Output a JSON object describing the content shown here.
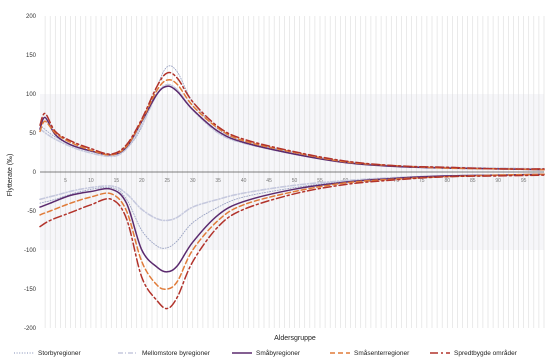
{
  "chart_data": {
    "type": "line",
    "xlabel": "Aldersgruppe",
    "ylabel": "Flytterate (‰)",
    "ylim": [
      -200,
      200
    ],
    "yticks": [
      -200,
      -150,
      -100,
      -50,
      0,
      50,
      100,
      150,
      200
    ],
    "xlim": [
      0,
      99
    ],
    "xticks": [
      5,
      10,
      15,
      20,
      25,
      30,
      35,
      40,
      45,
      50,
      55,
      60,
      65,
      70,
      75,
      80,
      85,
      90,
      95
    ],
    "grid": "vertical",
    "legend": "bottom",
    "colors": {
      "storby": "#9aa3c4",
      "mellomstore": "#c6c9de",
      "smaby": "#5b2a6e",
      "smasenter": "#e07b39",
      "spredtbygde": "#b2332b"
    },
    "series": [
      {
        "name": "Storbyregioner",
        "key": "storby",
        "style": "dotted",
        "inflow": [
          [
            0,
            60
          ],
          [
            3,
            45
          ],
          [
            8,
            30
          ],
          [
            14,
            22
          ],
          [
            17,
            30
          ],
          [
            20,
            58
          ],
          [
            23,
            110
          ],
          [
            25,
            135
          ],
          [
            27,
            128
          ],
          [
            30,
            90
          ],
          [
            35,
            55
          ],
          [
            40,
            40
          ],
          [
            50,
            25
          ],
          [
            60,
            14
          ],
          [
            70,
            8
          ],
          [
            80,
            6
          ],
          [
            90,
            5
          ],
          [
            99,
            4
          ]
        ],
        "outflow": [
          [
            0,
            -40
          ],
          [
            3,
            -35
          ],
          [
            8,
            -25
          ],
          [
            14,
            -20
          ],
          [
            17,
            -35
          ],
          [
            20,
            -75
          ],
          [
            23,
            -95
          ],
          [
            25,
            -97
          ],
          [
            27,
            -88
          ],
          [
            30,
            -65
          ],
          [
            35,
            -45
          ],
          [
            40,
            -32
          ],
          [
            50,
            -20
          ],
          [
            60,
            -12
          ],
          [
            70,
            -8
          ],
          [
            80,
            -5
          ],
          [
            90,
            -4
          ],
          [
            99,
            -3
          ]
        ]
      },
      {
        "name": "Mellomstore byregioner",
        "key": "mellomstore",
        "style": "dashdot",
        "inflow": [
          [
            0,
            55
          ],
          [
            3,
            42
          ],
          [
            8,
            28
          ],
          [
            14,
            20
          ],
          [
            17,
            30
          ],
          [
            20,
            60
          ],
          [
            23,
            100
          ],
          [
            25,
            112
          ],
          [
            27,
            105
          ],
          [
            30,
            80
          ],
          [
            35,
            50
          ],
          [
            40,
            37
          ],
          [
            50,
            23
          ],
          [
            60,
            13
          ],
          [
            70,
            8
          ],
          [
            80,
            6
          ],
          [
            90,
            5
          ],
          [
            99,
            4
          ]
        ],
        "outflow": [
          [
            0,
            -35
          ],
          [
            3,
            -30
          ],
          [
            8,
            -22
          ],
          [
            14,
            -18
          ],
          [
            17,
            -28
          ],
          [
            20,
            -48
          ],
          [
            23,
            -60
          ],
          [
            25,
            -62
          ],
          [
            27,
            -58
          ],
          [
            30,
            -45
          ],
          [
            35,
            -35
          ],
          [
            40,
            -27
          ],
          [
            50,
            -17
          ],
          [
            60,
            -11
          ],
          [
            70,
            -7
          ],
          [
            80,
            -5
          ],
          [
            90,
            -4
          ],
          [
            99,
            -3
          ]
        ]
      },
      {
        "name": "Småbyregioner",
        "key": "smaby",
        "style": "solid",
        "inflow": [
          [
            0,
            55
          ],
          [
            1,
            70
          ],
          [
            3,
            48
          ],
          [
            6,
            35
          ],
          [
            10,
            27
          ],
          [
            14,
            22
          ],
          [
            17,
            32
          ],
          [
            20,
            65
          ],
          [
            23,
            100
          ],
          [
            25,
            110
          ],
          [
            27,
            103
          ],
          [
            30,
            80
          ],
          [
            35,
            52
          ],
          [
            40,
            38
          ],
          [
            50,
            23
          ],
          [
            60,
            12
          ],
          [
            70,
            7
          ],
          [
            80,
            5
          ],
          [
            90,
            4
          ],
          [
            99,
            3
          ]
        ],
        "outflow": [
          [
            0,
            -45
          ],
          [
            2,
            -40
          ],
          [
            6,
            -30
          ],
          [
            10,
            -25
          ],
          [
            14,
            -22
          ],
          [
            17,
            -40
          ],
          [
            20,
            -100
          ],
          [
            23,
            -122
          ],
          [
            25,
            -128
          ],
          [
            27,
            -120
          ],
          [
            30,
            -90
          ],
          [
            35,
            -55
          ],
          [
            40,
            -38
          ],
          [
            50,
            -22
          ],
          [
            60,
            -13
          ],
          [
            70,
            -8
          ],
          [
            80,
            -5
          ],
          [
            90,
            -4
          ],
          [
            99,
            -3
          ]
        ]
      },
      {
        "name": "Småsenterregioner",
        "key": "smasenter",
        "style": "dashed",
        "inflow": [
          [
            0,
            52
          ],
          [
            1,
            65
          ],
          [
            3,
            50
          ],
          [
            6,
            38
          ],
          [
            10,
            28
          ],
          [
            14,
            22
          ],
          [
            17,
            33
          ],
          [
            20,
            66
          ],
          [
            23,
            105
          ],
          [
            25,
            118
          ],
          [
            27,
            112
          ],
          [
            30,
            85
          ],
          [
            35,
            56
          ],
          [
            40,
            40
          ],
          [
            50,
            25
          ],
          [
            60,
            13
          ],
          [
            70,
            8
          ],
          [
            80,
            5
          ],
          [
            90,
            4
          ],
          [
            99,
            3
          ]
        ],
        "outflow": [
          [
            0,
            -55
          ],
          [
            2,
            -50
          ],
          [
            6,
            -40
          ],
          [
            10,
            -32
          ],
          [
            14,
            -28
          ],
          [
            17,
            -50
          ],
          [
            20,
            -115
          ],
          [
            23,
            -145
          ],
          [
            25,
            -150
          ],
          [
            27,
            -140
          ],
          [
            30,
            -100
          ],
          [
            35,
            -62
          ],
          [
            40,
            -42
          ],
          [
            50,
            -25
          ],
          [
            60,
            -14
          ],
          [
            70,
            -9
          ],
          [
            80,
            -6
          ],
          [
            90,
            -4
          ],
          [
            99,
            -3
          ]
        ]
      },
      {
        "name": "Spredtbygde områder",
        "key": "spredtbygde",
        "style": "longdashdot",
        "inflow": [
          [
            0,
            60
          ],
          [
            1,
            75
          ],
          [
            3,
            52
          ],
          [
            6,
            40
          ],
          [
            10,
            30
          ],
          [
            14,
            23
          ],
          [
            17,
            35
          ],
          [
            20,
            68
          ],
          [
            23,
            110
          ],
          [
            25,
            127
          ],
          [
            27,
            120
          ],
          [
            30,
            90
          ],
          [
            35,
            58
          ],
          [
            40,
            42
          ],
          [
            50,
            26
          ],
          [
            60,
            14
          ],
          [
            70,
            8
          ],
          [
            80,
            6
          ],
          [
            90,
            4
          ],
          [
            99,
            4
          ]
        ],
        "outflow": [
          [
            0,
            -70
          ],
          [
            2,
            -62
          ],
          [
            6,
            -52
          ],
          [
            10,
            -42
          ],
          [
            14,
            -35
          ],
          [
            17,
            -60
          ],
          [
            20,
            -135
          ],
          [
            23,
            -165
          ],
          [
            25,
            -175
          ],
          [
            27,
            -160
          ],
          [
            30,
            -115
          ],
          [
            35,
            -70
          ],
          [
            40,
            -48
          ],
          [
            50,
            -28
          ],
          [
            60,
            -16
          ],
          [
            70,
            -10
          ],
          [
            80,
            -6
          ],
          [
            90,
            -5
          ],
          [
            99,
            -4
          ]
        ]
      }
    ]
  }
}
